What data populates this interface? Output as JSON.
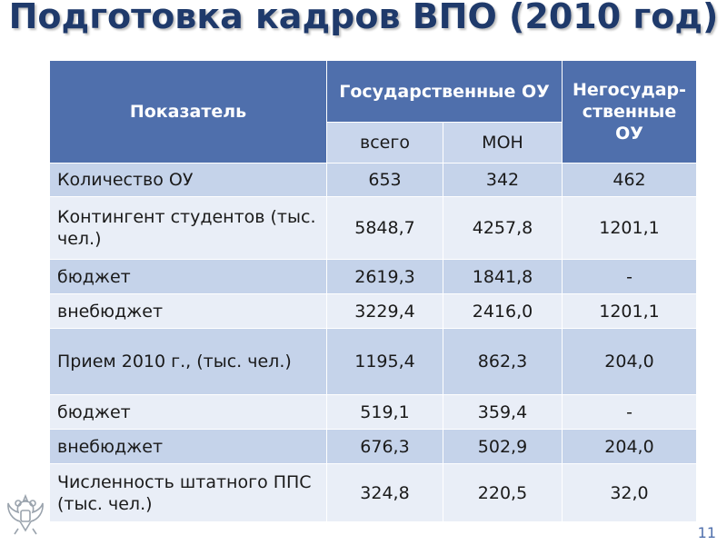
{
  "title": "Подготовка кадров ВПО (2010 год)",
  "header": {
    "indicator": "Показатель",
    "state": "Государственные ОУ",
    "nonstate": "Негосудар-ственные ОУ",
    "total": "всего",
    "mon": "МОН"
  },
  "rows": [
    {
      "label": "Количество ОУ",
      "total": "653",
      "mon": "342",
      "nonstate": "462"
    },
    {
      "label": "Контингент студентов (тыс. чел.)",
      "total": "5848,7",
      "mon": "4257,8",
      "nonstate": "1201,1"
    },
    {
      "label": "бюджет",
      "total": "2619,3",
      "mon": "1841,8",
      "nonstate": "-"
    },
    {
      "label": "внебюджет",
      "total": "3229,4",
      "mon": "2416,0",
      "nonstate": "1201,1"
    },
    {
      "label": "Прием 2010 г., (тыс. чел.)",
      "total": "1195,4",
      "mon": "862,3",
      "nonstate": "204,0"
    },
    {
      "label": "бюджет",
      "total": "519,1",
      "mon": "359,4",
      "nonstate": "-"
    },
    {
      "label": "внебюджет",
      "total": "676,3",
      "mon": "502,9",
      "nonstate": "204,0"
    },
    {
      "label": "Численность штатного ППС (тыс. чел.)",
      "total": "324,8",
      "mon": "220,5",
      "nonstate": "32,0"
    }
  ],
  "page_number": "11",
  "icons": {
    "emblem": "coat-of-arms-icon"
  }
}
